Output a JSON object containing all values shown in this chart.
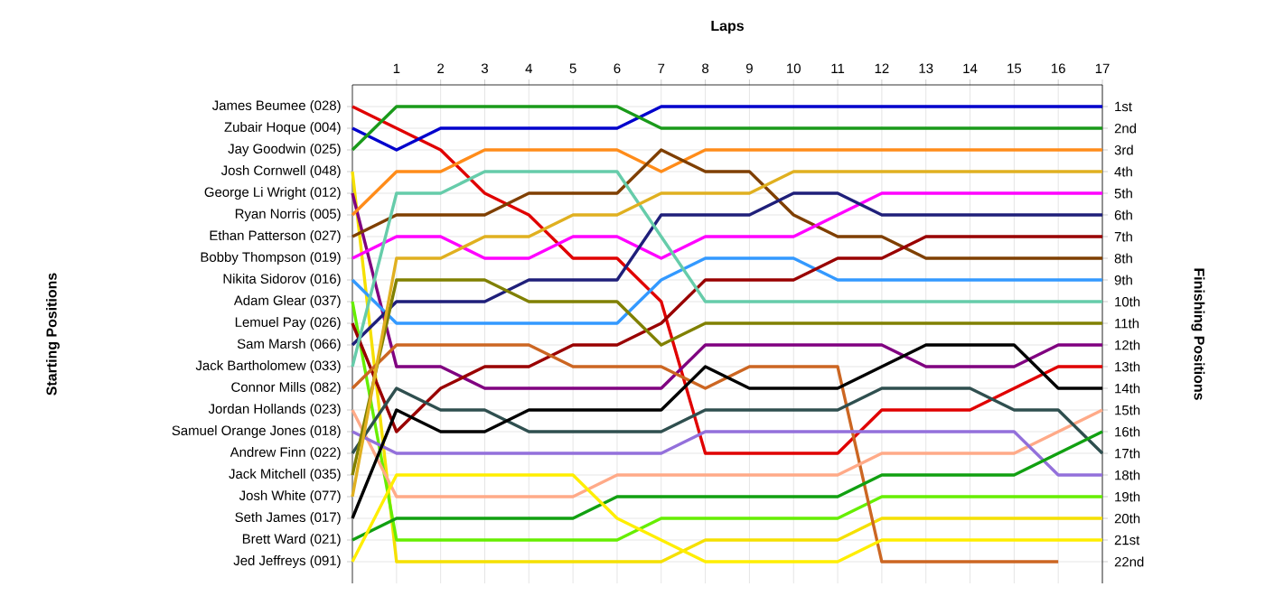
{
  "chart_data": {
    "type": "line",
    "xlabel": "Laps",
    "ylabel": "Finishing Positions",
    "x": [
      0,
      1,
      2,
      3,
      4,
      5,
      6,
      7,
      8,
      9,
      10,
      11,
      12,
      13,
      14,
      15,
      16,
      17
    ],
    "xlim": [
      0,
      17
    ],
    "xticks": [
      1,
      2,
      3,
      4,
      5,
      6,
      7,
      8,
      9,
      10,
      11,
      12,
      13,
      14,
      15,
      16,
      17
    ],
    "ylim": [
      23,
      0
    ],
    "yticks": [
      {
        "value": 1,
        "label": "1st"
      },
      {
        "value": 2,
        "label": "2nd"
      },
      {
        "value": 3,
        "label": "3rd"
      },
      {
        "value": 4,
        "label": "4th"
      },
      {
        "value": 5,
        "label": "5th"
      },
      {
        "value": 6,
        "label": "6th"
      },
      {
        "value": 7,
        "label": "7th"
      },
      {
        "value": 8,
        "label": "8th"
      },
      {
        "value": 9,
        "label": "9th"
      },
      {
        "value": 10,
        "label": "10th"
      },
      {
        "value": 11,
        "label": "11th"
      },
      {
        "value": 12,
        "label": "12th"
      },
      {
        "value": 13,
        "label": "13th"
      },
      {
        "value": 14,
        "label": "14th"
      },
      {
        "value": 15,
        "label": "15th"
      },
      {
        "value": 16,
        "label": "16th"
      },
      {
        "value": 17,
        "label": "17th"
      },
      {
        "value": 18,
        "label": "18th"
      },
      {
        "value": 19,
        "label": "19th"
      },
      {
        "value": 20,
        "label": "20th"
      },
      {
        "value": 21,
        "label": "21st"
      },
      {
        "value": 22,
        "label": "22nd"
      }
    ],
    "annotations": [
      "Starting Positions",
      "James Beumee (028)",
      "Zubair Hoque (004)",
      "Jay Goodwin (025)",
      "Josh Cornwell (048)",
      "George Li Wright (012)",
      "Ryan Norris (005)",
      "Ethan Patterson (027)",
      "Bobby Thompson (019)",
      "Nikita Sidorov (016)",
      "Adam Glear (037)",
      "Lemuel Pay (026)",
      "Sam Marsh (066)",
      "Jack Bartholomew (033)",
      "Connor Mills (082)",
      "Jordan Hollands (023)",
      "Samuel Orange Jones (018)",
      "Andrew Finn (022)",
      "Jack Mitchell (035)",
      "Josh White (077)",
      "Seth James (017)",
      "Brett Ward (021)",
      "Jed Jeffreys (091)"
    ],
    "grid": true,
    "marker": "none",
    "line_style": "solid",
    "series": [
      {
        "color": "#e00000",
        "values": [
          1,
          2,
          3,
          5,
          6,
          8,
          8,
          10,
          17,
          17,
          17,
          17,
          15,
          15,
          15,
          14,
          13,
          13
        ]
      },
      {
        "color": "#0000cc",
        "values": [
          2,
          3,
          2,
          2,
          2,
          2,
          2,
          1,
          1,
          1,
          1,
          1,
          1,
          1,
          1,
          1,
          1,
          1
        ]
      },
      {
        "color": "#1a9a1a",
        "values": [
          3,
          1,
          1,
          1,
          1,
          1,
          1,
          2,
          2,
          2,
          2,
          2,
          2,
          2,
          2,
          2,
          2,
          2
        ]
      },
      {
        "color": "#f5e000",
        "values": [
          4,
          22,
          22,
          22,
          22,
          22,
          22,
          22,
          21,
          21,
          21,
          21,
          20,
          20,
          20,
          20,
          20,
          20
        ]
      },
      {
        "color": "#800080",
        "values": [
          5,
          13,
          13,
          14,
          14,
          14,
          14,
          14,
          12,
          12,
          12,
          12,
          12,
          13,
          13,
          13,
          12,
          12
        ]
      },
      {
        "color": "#ff8c1a",
        "values": [
          6,
          4,
          4,
          3,
          3,
          3,
          3,
          4,
          3,
          3,
          3,
          3,
          3,
          3,
          3,
          3,
          3,
          3
        ]
      },
      {
        "color": "#7f3f00",
        "values": [
          7,
          6,
          6,
          6,
          5,
          5,
          5,
          3,
          4,
          4,
          6,
          7,
          7,
          8,
          8,
          8,
          8,
          8
        ]
      },
      {
        "color": "#ff00ff",
        "values": [
          8,
          7,
          7,
          8,
          8,
          7,
          7,
          8,
          7,
          7,
          7,
          6,
          5,
          5,
          5,
          5,
          5,
          5
        ]
      },
      {
        "color": "#3399ff",
        "values": [
          9,
          11,
          11,
          11,
          11,
          11,
          11,
          9,
          8,
          8,
          8,
          9,
          9,
          9,
          9,
          9,
          9,
          9
        ]
      },
      {
        "color": "#66ee00",
        "values": [
          10,
          21,
          21,
          21,
          21,
          21,
          21,
          20,
          20,
          20,
          20,
          20,
          19,
          19,
          19,
          19,
          19,
          19
        ]
      },
      {
        "color": "#990000",
        "values": [
          11,
          16,
          14,
          13,
          13,
          12,
          12,
          11,
          9,
          9,
          9,
          8,
          8,
          7,
          7,
          7,
          7,
          7
        ]
      },
      {
        "color": "#1f1f7a",
        "values": [
          12,
          10,
          10,
          10,
          9,
          9,
          9,
          6,
          6,
          6,
          5,
          5,
          6,
          6,
          6,
          6,
          6,
          6
        ]
      },
      {
        "color": "#66ccaa",
        "values": [
          13,
          5,
          5,
          4,
          4,
          4,
          4,
          7,
          10,
          10,
          10,
          10,
          10,
          10,
          10,
          10,
          10,
          10
        ]
      },
      {
        "color": "#cc6622",
        "values": [
          14,
          12,
          12,
          12,
          12,
          13,
          13,
          13,
          14,
          13,
          13,
          13,
          22,
          22,
          22,
          22,
          22,
          null
        ]
      },
      {
        "color": "#ffaa88",
        "values": [
          15,
          19,
          19,
          19,
          19,
          19,
          18,
          18,
          18,
          18,
          18,
          18,
          17,
          17,
          17,
          17,
          16,
          15
        ]
      },
      {
        "color": "#9370db",
        "values": [
          16,
          17,
          17,
          17,
          17,
          17,
          17,
          17,
          16,
          16,
          16,
          16,
          16,
          16,
          16,
          16,
          18,
          18
        ]
      },
      {
        "color": "#2f4f4f",
        "values": [
          17,
          14,
          15,
          15,
          16,
          16,
          16,
          16,
          15,
          15,
          15,
          15,
          14,
          14,
          14,
          15,
          15,
          17
        ]
      },
      {
        "color": "#808000",
        "values": [
          18,
          9,
          9,
          9,
          10,
          10,
          10,
          12,
          11,
          11,
          11,
          11,
          11,
          11,
          11,
          11,
          11,
          11
        ]
      },
      {
        "color": "#e0b020",
        "values": [
          19,
          8,
          8,
          7,
          7,
          6,
          6,
          5,
          5,
          5,
          4,
          4,
          4,
          4,
          4,
          4,
          4,
          4
        ]
      },
      {
        "color": "#000000",
        "values": [
          20,
          15,
          16,
          16,
          15,
          15,
          15,
          15,
          13,
          14,
          14,
          14,
          13,
          12,
          12,
          12,
          14,
          14
        ]
      },
      {
        "color": "#11a011",
        "values": [
          21,
          20,
          20,
          20,
          20,
          20,
          19,
          19,
          19,
          19,
          19,
          19,
          18,
          18,
          18,
          18,
          17,
          16
        ]
      },
      {
        "color": "#ffee00",
        "values": [
          22,
          18,
          18,
          18,
          18,
          18,
          20,
          21,
          22,
          22,
          22,
          22,
          21,
          21,
          21,
          21,
          21,
          21
        ]
      }
    ]
  }
}
